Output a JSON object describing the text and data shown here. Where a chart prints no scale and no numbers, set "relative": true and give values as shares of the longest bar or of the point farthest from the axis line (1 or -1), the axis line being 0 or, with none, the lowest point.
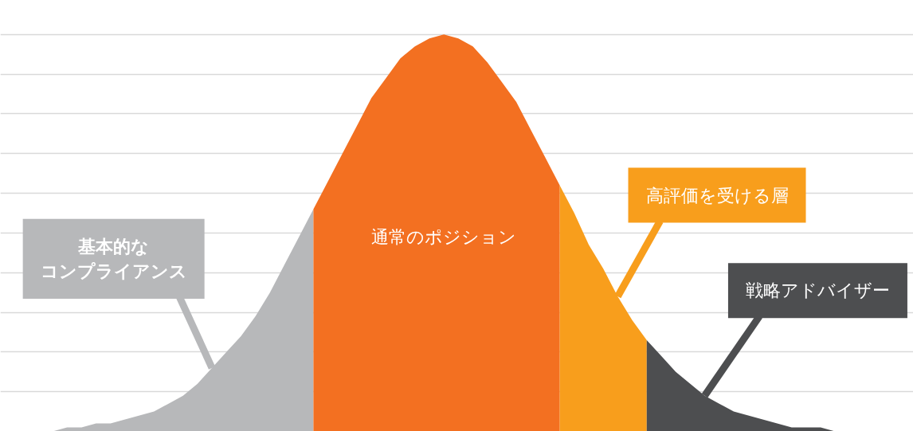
{
  "chart_data": {
    "type": "area",
    "relative": true,
    "grid": "y",
    "categories": [
      null,
      null,
      null,
      null,
      null,
      null,
      null,
      null,
      null,
      null,
      null,
      null,
      null,
      null,
      null,
      null,
      null,
      null,
      null,
      null,
      null,
      null,
      null,
      null,
      null,
      null,
      null,
      null,
      null,
      null,
      null,
      null,
      null,
      null,
      null,
      null,
      null,
      null,
      null,
      null,
      null,
      null,
      null,
      null,
      null,
      null,
      null,
      null,
      null,
      null,
      null,
      null,
      null,
      null,
      null,
      null,
      null,
      null,
      null,
      null,
      null,
      null,
      null
    ],
    "series": [
      {
        "color": "#b7b8ba",
        "values": [
          0,
          0,
          0,
          0,
          0.01,
          0.01,
          0.02,
          0.02,
          0.03,
          0.04,
          0.05,
          0.07,
          0.09,
          0.12,
          0.16,
          0.2,
          0.24,
          0.29,
          0.35,
          0.42,
          0.49,
          0.56,
          null,
          null,
          null,
          null,
          null,
          null,
          null,
          null,
          null,
          null,
          null,
          null,
          null,
          null,
          null,
          null,
          null,
          null,
          null,
          null,
          null,
          null,
          null,
          null,
          null,
          null,
          null,
          null,
          null,
          null,
          null,
          null,
          null,
          null,
          null,
          null,
          null,
          null,
          null,
          null,
          null
        ]
      },
      {
        "color": "#f37021",
        "values": [
          null,
          null,
          null,
          null,
          null,
          null,
          null,
          null,
          null,
          null,
          null,
          null,
          null,
          null,
          null,
          null,
          null,
          null,
          null,
          null,
          null,
          0.56,
          0.63,
          0.7,
          0.77,
          0.84,
          0.89,
          0.94,
          0.97,
          0.99,
          1,
          0.99,
          0.97,
          0.93,
          0.88,
          0.83,
          0.76,
          0.69,
          0.62,
          null,
          null,
          null,
          null,
          null,
          null,
          null,
          null,
          null,
          null,
          null,
          null,
          null,
          null,
          null,
          null,
          null,
          null,
          null,
          null,
          null,
          null,
          null,
          null
        ]
      },
      {
        "color": "#f89e1c",
        "values": [
          null,
          null,
          null,
          null,
          null,
          null,
          null,
          null,
          null,
          null,
          null,
          null,
          null,
          null,
          null,
          null,
          null,
          null,
          null,
          null,
          null,
          null,
          null,
          null,
          null,
          null,
          null,
          null,
          null,
          null,
          null,
          null,
          null,
          null,
          null,
          null,
          null,
          null,
          0.62,
          0.55,
          0.47,
          0.41,
          0.34,
          0.28,
          0.23,
          null,
          null,
          null,
          null,
          null,
          null,
          null,
          null,
          null,
          null,
          null,
          null,
          null,
          null,
          null,
          null,
          null,
          null
        ]
      },
      {
        "color": "#4d4e50",
        "values": [
          null,
          null,
          null,
          null,
          null,
          null,
          null,
          null,
          null,
          null,
          null,
          null,
          null,
          null,
          null,
          null,
          null,
          null,
          null,
          null,
          null,
          null,
          null,
          null,
          null,
          null,
          null,
          null,
          null,
          null,
          null,
          null,
          null,
          null,
          null,
          null,
          null,
          null,
          null,
          null,
          null,
          null,
          null,
          null,
          0.23,
          0.19,
          0.15,
          0.12,
          0.09,
          0.07,
          0.05,
          0.04,
          0.03,
          0.02,
          0.01,
          0.01,
          0.01,
          0,
          0,
          0,
          0,
          0,
          0
        ]
      }
    ],
    "annotations": [
      "基本的なコンプライアンス",
      "通常のポジション",
      "高評価を受ける層",
      "戦略アドバイザー"
    ]
  }
}
